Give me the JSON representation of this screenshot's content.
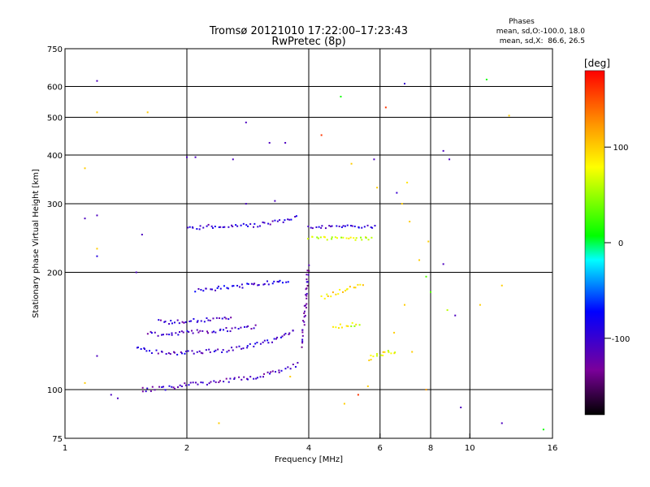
{
  "chart_data": {
    "type": "scatter",
    "title": "Tromsø 20121010 17:22:00–17:23:43",
    "subtitle": "RwPretec (8p)",
    "xlabel": "Frequency [MHz]",
    "ylabel": "Stationary phase Virtual Height [km]",
    "x_scale": "log",
    "y_scale": "log",
    "xlim": [
      1,
      16
    ],
    "ylim": [
      75,
      750
    ],
    "x_ticks": [
      1,
      2,
      4,
      6,
      8,
      10,
      16
    ],
    "x_tick_labels": [
      "1",
      "2",
      "4",
      "6",
      "8",
      "10",
      "16"
    ],
    "x_gridlines": [
      2,
      4,
      6,
      8,
      10
    ],
    "y_ticks": [
      75,
      100,
      200,
      300,
      400,
      500,
      600,
      750
    ],
    "y_tick_labels": [
      "75",
      "100",
      "200",
      "300",
      "400",
      "500",
      "600",
      "750"
    ],
    "y_gridlines": [
      100,
      200,
      300,
      400,
      500,
      600
    ],
    "grid": true,
    "stats": {
      "heading": "Phases",
      "line1": "mean, sd,O:-100.0, 18.0",
      "line2": "mean, sd,X:  86.6, 26.5"
    },
    "colorbar": {
      "label": "[deg]",
      "range": [
        -180,
        180
      ],
      "ticks": [
        100,
        0,
        -100
      ],
      "tick_labels": [
        "100",
        "0",
        "-100"
      ]
    },
    "traces": [
      {
        "x": [
          1.55,
          1.6,
          1.7,
          1.8,
          1.9,
          2.0,
          2.2,
          2.4,
          2.6,
          2.8,
          3.0,
          3.2,
          3.4,
          3.6,
          3.8
        ],
        "y": [
          100,
          100,
          101,
          101,
          102,
          103,
          104,
          105,
          106,
          107,
          108,
          110,
          112,
          114,
          117
        ],
        "phase": -110
      },
      {
        "x": [
          1.5,
          1.6,
          1.7,
          1.8,
          2.0,
          2.2,
          2.4,
          2.6,
          2.8,
          3.0,
          3.2,
          3.4,
          3.6,
          3.7
        ],
        "y": [
          128,
          126,
          125,
          124,
          124,
          125,
          126,
          127,
          129,
          131,
          133,
          136,
          140,
          143
        ],
        "phase": -100
      },
      {
        "x": [
          1.6,
          1.7,
          1.8,
          2.0,
          2.2,
          2.4,
          2.6,
          2.8,
          3.0
        ],
        "y": [
          140,
          139,
          139,
          140,
          141,
          142,
          143,
          144,
          146
        ],
        "phase": -105
      },
      {
        "x": [
          1.7,
          1.8,
          2.0,
          2.2,
          2.4,
          2.6
        ],
        "y": [
          150,
          149,
          150,
          151,
          152,
          154
        ],
        "phase": -110
      },
      {
        "x": [
          3.85,
          3.9,
          3.95,
          4.0
        ],
        "y": [
          130,
          150,
          180,
          210
        ],
        "phase": -115
      },
      {
        "x": [
          2.0,
          2.2,
          2.6,
          3.0,
          3.4,
          3.8
        ],
        "y": [
          258,
          262,
          262,
          265,
          270,
          278
        ],
        "phase": -100
      },
      {
        "x": [
          4.0,
          4.4,
          4.8,
          5.2,
          5.6,
          5.9
        ],
        "y": [
          262,
          262,
          262,
          262,
          262,
          262
        ],
        "phase": -95
      },
      {
        "x": [
          4.0,
          4.4,
          4.8,
          5.2,
          5.8
        ],
        "y": [
          245,
          245,
          245,
          245,
          245
        ],
        "phase": 70
      },
      {
        "x": [
          4.6,
          4.8,
          5.0,
          5.2,
          5.4
        ],
        "y": [
          145,
          146,
          146,
          147,
          148
        ],
        "phase": 70
      },
      {
        "x": [
          5.6,
          5.8,
          6.0,
          6.2,
          6.4,
          6.6
        ],
        "y": [
          120,
          122,
          123,
          124,
          125,
          126
        ],
        "phase": 80
      },
      {
        "x": [
          4.3,
          4.6,
          4.9,
          5.2,
          5.5
        ],
        "y": [
          172,
          176,
          180,
          184,
          188
        ],
        "phase": 90
      },
      {
        "x": [
          2.1,
          2.4,
          2.8,
          3.2,
          3.6
        ],
        "y": [
          180,
          182,
          185,
          188,
          190
        ],
        "phase": -90
      }
    ],
    "scattered": [
      {
        "x": 1.2,
        "y": 620,
        "phase": -110
      },
      {
        "x": 1.2,
        "y": 515,
        "phase": 100
      },
      {
        "x": 1.6,
        "y": 515,
        "phase": 100
      },
      {
        "x": 1.12,
        "y": 370,
        "phase": 100
      },
      {
        "x": 1.12,
        "y": 275,
        "phase": -110
      },
      {
        "x": 1.2,
        "y": 280,
        "phase": -110
      },
      {
        "x": 1.2,
        "y": 230,
        "phase": 100
      },
      {
        "x": 1.55,
        "y": 250,
        "phase": -110
      },
      {
        "x": 1.2,
        "y": 220,
        "phase": -90
      },
      {
        "x": 1.35,
        "y": 95,
        "phase": -110
      },
      {
        "x": 1.3,
        "y": 97,
        "phase": -110
      },
      {
        "x": 1.2,
        "y": 122,
        "phase": -110
      },
      {
        "x": 1.12,
        "y": 104,
        "phase": 100
      },
      {
        "x": 2.0,
        "y": 395,
        "phase": -110
      },
      {
        "x": 2.1,
        "y": 395,
        "phase": -110
      },
      {
        "x": 2.6,
        "y": 390,
        "phase": -110
      },
      {
        "x": 2.8,
        "y": 485,
        "phase": -110
      },
      {
        "x": 3.2,
        "y": 430,
        "phase": -110
      },
      {
        "x": 3.5,
        "y": 430,
        "phase": -110
      },
      {
        "x": 3.3,
        "y": 305,
        "phase": -110
      },
      {
        "x": 2.8,
        "y": 300,
        "phase": -110
      },
      {
        "x": 4.3,
        "y": 450,
        "phase": 160
      },
      {
        "x": 4.8,
        "y": 565,
        "phase": 10
      },
      {
        "x": 5.1,
        "y": 380,
        "phase": 100
      },
      {
        "x": 5.8,
        "y": 390,
        "phase": -110
      },
      {
        "x": 6.2,
        "y": 530,
        "phase": 160
      },
      {
        "x": 6.9,
        "y": 610,
        "phase": -100
      },
      {
        "x": 7.0,
        "y": 340,
        "phase": 90
      },
      {
        "x": 8.6,
        "y": 410,
        "phase": -110
      },
      {
        "x": 8.9,
        "y": 390,
        "phase": -110
      },
      {
        "x": 11.0,
        "y": 625,
        "phase": 10
      },
      {
        "x": 12.5,
        "y": 505,
        "phase": 100
      },
      {
        "x": 8.6,
        "y": 210,
        "phase": -110
      },
      {
        "x": 8.8,
        "y": 160,
        "phase": 60
      },
      {
        "x": 9.2,
        "y": 155,
        "phase": -110
      },
      {
        "x": 9.5,
        "y": 90,
        "phase": -110
      },
      {
        "x": 12.0,
        "y": 82,
        "phase": -110
      },
      {
        "x": 15.2,
        "y": 79,
        "phase": 10
      },
      {
        "x": 10.6,
        "y": 165,
        "phase": 100
      },
      {
        "x": 12.0,
        "y": 185,
        "phase": 100
      },
      {
        "x": 7.8,
        "y": 100,
        "phase": 120
      },
      {
        "x": 7.2,
        "y": 125,
        "phase": 100
      },
      {
        "x": 4.9,
        "y": 92,
        "phase": 100
      },
      {
        "x": 5.3,
        "y": 97,
        "phase": 160
      },
      {
        "x": 5.6,
        "y": 102,
        "phase": 100
      },
      {
        "x": 3.6,
        "y": 108,
        "phase": 100
      },
      {
        "x": 7.8,
        "y": 195,
        "phase": 30
      },
      {
        "x": 8.0,
        "y": 178,
        "phase": 30
      },
      {
        "x": 7.5,
        "y": 215,
        "phase": 100
      },
      {
        "x": 7.9,
        "y": 240,
        "phase": 100
      },
      {
        "x": 6.9,
        "y": 165,
        "phase": 100
      },
      {
        "x": 6.5,
        "y": 140,
        "phase": 100
      },
      {
        "x": 2.4,
        "y": 82,
        "phase": 100
      },
      {
        "x": 1.5,
        "y": 200,
        "phase": -110
      },
      {
        "x": 6.8,
        "y": 300,
        "phase": 100
      },
      {
        "x": 7.1,
        "y": 270,
        "phase": 100
      },
      {
        "x": 6.6,
        "y": 320,
        "phase": -100
      },
      {
        "x": 5.9,
        "y": 330,
        "phase": 100
      }
    ]
  }
}
